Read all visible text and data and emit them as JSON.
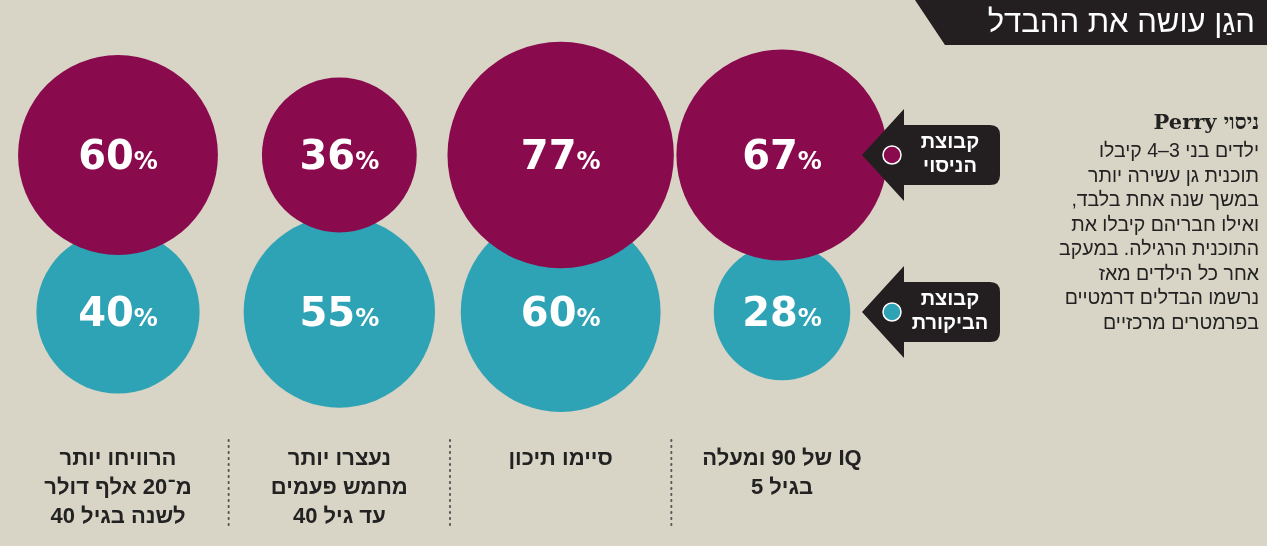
{
  "chart_data": {
    "type": "other",
    "title": "הגַן עושה את ההבדל",
    "categories": [
      "הרוויחו יותר מ־20 אלף דולר לשנה בגיל 40",
      "נעצרו יותר מחמש פעמים עד גיל 40",
      "סיימו תיכון",
      "IQ של 90 ומעלה בגיל 5"
    ],
    "series": [
      {
        "name": "קבוצת הניסוי",
        "color": "#8a0a4e",
        "values": [
          60,
          36,
          77,
          67
        ],
        "value_labels": [
          "60%",
          "36%",
          "77%",
          "67%"
        ]
      },
      {
        "name": "קבוצת הביקורת",
        "color": "#2ea3b5",
        "values": [
          40,
          55,
          60,
          28
        ],
        "value_labels": [
          "40%",
          "55%",
          "60%",
          "28%"
        ]
      }
    ],
    "legend": "right",
    "annotations": [
      "ניסוי Perry",
      "ילדים בני 3–4 קיבלו תוכנית גן עשירה יותר במשך שנה אחת בלבד, ואילו חבריהם קיבלו את התוכנית הרגילה. במעקב אחר כל הילדים מאז נרשמו הבדלים דרמטיים בפרמטרים מרכזיים"
    ]
  }
}
